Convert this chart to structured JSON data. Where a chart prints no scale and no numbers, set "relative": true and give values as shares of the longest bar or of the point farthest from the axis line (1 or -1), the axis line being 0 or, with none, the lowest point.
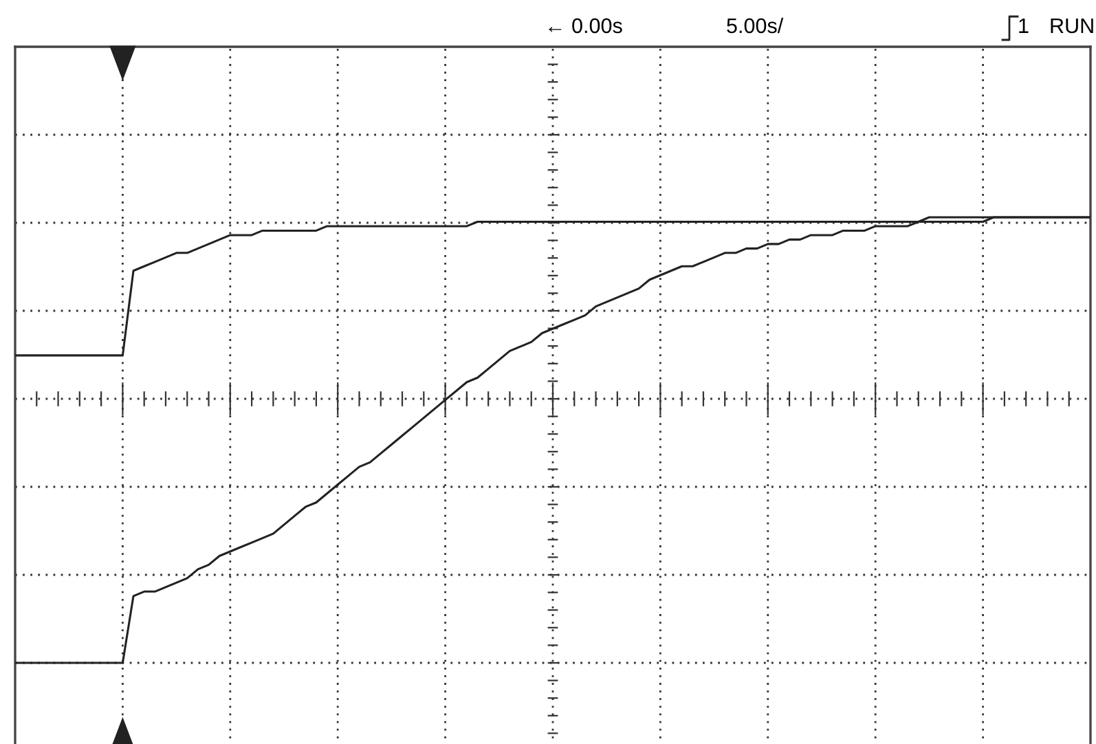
{
  "chart_data": {
    "type": "line",
    "relative": true,
    "categories": [
      null,
      null,
      null,
      null,
      null,
      null,
      null,
      null,
      null,
      null,
      null,
      null,
      null,
      null,
      null,
      null,
      null,
      null,
      null,
      null,
      null,
      null,
      null,
      null,
      null,
      null,
      null,
      null,
      null,
      null,
      null,
      null,
      null,
      null,
      null,
      null,
      null,
      null,
      null,
      null,
      null,
      null,
      null,
      null,
      null,
      null,
      null,
      null,
      null,
      null,
      null,
      null,
      null,
      null,
      null,
      null,
      null,
      null,
      null,
      null,
      null,
      null,
      null,
      null,
      null,
      null,
      null,
      null,
      null,
      null,
      null,
      null,
      null,
      null,
      null,
      null,
      null,
      null,
      null,
      null,
      null,
      null,
      null,
      null,
      null,
      null,
      null,
      null,
      null,
      null,
      null,
      null,
      null,
      null,
      null,
      null,
      null,
      null,
      null,
      null,
      null
    ],
    "grid": true,
    "line_style": "solid",
    "marker": "none",
    "series": [
      {
        "color": "#222222",
        "values": [
          0.69,
          0.69,
          0.69,
          0.69,
          0.69,
          0.69,
          0.69,
          0.69,
          0.69,
          0.69,
          0.69,
          0.88,
          0.89,
          0.9,
          0.91,
          0.92,
          0.92,
          0.93,
          0.94,
          0.95,
          0.96,
          0.96,
          0.96,
          0.97,
          0.97,
          0.97,
          0.97,
          0.97,
          0.97,
          0.98,
          0.98,
          0.98,
          0.98,
          0.98,
          0.98,
          0.98,
          0.98,
          0.98,
          0.98,
          0.98,
          0.98,
          0.98,
          0.98,
          0.99,
          0.99,
          0.99,
          0.99,
          0.99,
          0.99,
          0.99,
          0.99,
          0.99,
          0.99,
          0.99,
          0.99,
          0.99,
          0.99,
          0.99,
          0.99,
          0.99,
          0.99,
          0.99,
          0.99,
          0.99,
          0.99,
          0.99,
          0.99,
          0.99,
          0.99,
          0.99,
          0.99,
          0.99,
          0.99,
          0.99,
          0.99,
          0.99,
          0.99,
          0.99,
          0.99,
          0.99,
          0.99,
          0.99,
          0.99,
          0.99,
          0.99,
          1.0,
          1.0,
          1.0,
          1.0,
          1.0,
          1.0,
          1.0,
          1.0,
          1.0,
          1.0,
          1.0,
          1.0,
          1.0,
          1.0,
          1.0,
          1.0
        ]
      },
      {
        "color": "#222222",
        "values": [
          0,
          0,
          0,
          0,
          0,
          0,
          0,
          0,
          0,
          0,
          0,
          0.15,
          0.16,
          0.16,
          0.17,
          0.18,
          0.19,
          0.21,
          0.22,
          0.24,
          0.25,
          0.26,
          0.27,
          0.28,
          0.29,
          0.31,
          0.33,
          0.35,
          0.36,
          0.38,
          0.4,
          0.42,
          0.44,
          0.45,
          0.47,
          0.49,
          0.51,
          0.53,
          0.55,
          0.57,
          0.59,
          0.61,
          0.63,
          0.64,
          0.66,
          0.68,
          0.7,
          0.71,
          0.72,
          0.74,
          0.75,
          0.76,
          0.77,
          0.78,
          0.8,
          0.81,
          0.82,
          0.83,
          0.84,
          0.86,
          0.87,
          0.88,
          0.89,
          0.89,
          0.9,
          0.91,
          0.92,
          0.92,
          0.93,
          0.93,
          0.94,
          0.94,
          0.95,
          0.95,
          0.96,
          0.96,
          0.96,
          0.97,
          0.97,
          0.97,
          0.98,
          0.98,
          0.98,
          0.98,
          0.99,
          0.99,
          0.99,
          0.99,
          0.99,
          0.99,
          0.99,
          1.0,
          1.0,
          1.0,
          1.0,
          1.0,
          1.0,
          1.0,
          1.0,
          1.0,
          1.0
        ]
      }
    ],
    "annotations": [
      "← 0.00s",
      "5.00s/",
      "1",
      "RUN"
    ]
  }
}
